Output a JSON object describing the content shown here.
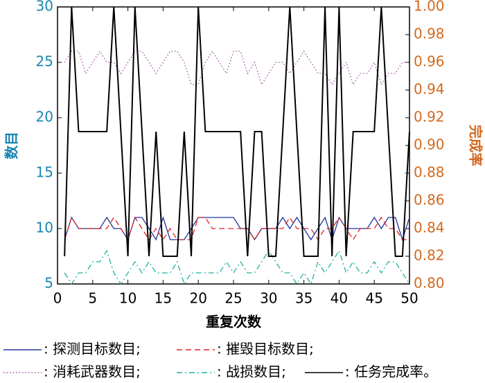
{
  "chart_data": {
    "type": "line",
    "xlabel": "重复次数",
    "ylabel": "数目",
    "y2label": "完成率",
    "x": [
      1,
      2,
      3,
      4,
      5,
      6,
      7,
      8,
      9,
      10,
      11,
      12,
      13,
      14,
      15,
      16,
      17,
      18,
      19,
      20,
      21,
      22,
      23,
      24,
      25,
      26,
      27,
      28,
      29,
      30,
      31,
      32,
      33,
      34,
      35,
      36,
      37,
      38,
      39,
      40,
      41,
      42,
      43,
      44,
      45,
      46,
      47,
      48,
      49,
      50
    ],
    "xlim": [
      0,
      50
    ],
    "xticks": [
      0,
      5,
      10,
      15,
      20,
      25,
      30,
      35,
      40,
      45,
      50
    ],
    "ylim": [
      5,
      30
    ],
    "yticks": [
      5,
      10,
      15,
      20,
      25,
      30
    ],
    "y2lim": [
      0.8,
      1.0
    ],
    "y2ticks": [
      {
        "value": 0.8,
        "label": "0.80"
      },
      {
        "value": 0.82,
        "label": "0.82"
      },
      {
        "value": 0.84,
        "label": "0.84"
      },
      {
        "value": 0.86,
        "label": "0.86"
      },
      {
        "value": 0.88,
        "label": "0.88"
      },
      {
        "value": 0.9,
        "label": "0.90"
      },
      {
        "value": 0.92,
        "label": "0.92"
      },
      {
        "value": 0.94,
        "label": "0.94"
      },
      {
        "value": 0.96,
        "label": "0.96"
      },
      {
        "value": 0.98,
        "label": "0.98"
      },
      {
        "value": 1.0,
        "label": "1.00"
      }
    ],
    "ycolor": "#1a86b0",
    "y2color": "#d2691e",
    "series": [
      {
        "name": ": 探测目标数目;",
        "color": "#22339a",
        "linestyle": "solid",
        "values": [
          9,
          11,
          10,
          10,
          10,
          10,
          11,
          10,
          10,
          9,
          11,
          11,
          10,
          9,
          11,
          9,
          9,
          9,
          10,
          11,
          11,
          11,
          11,
          11,
          11,
          10,
          10,
          9,
          10,
          10,
          10,
          11,
          10,
          11,
          10,
          9,
          10,
          11,
          9,
          11,
          10,
          10,
          10,
          10,
          11,
          10,
          11,
          11,
          9,
          11
        ]
      },
      {
        "name": ": 摧毁目标数目;",
        "color": "#e02020",
        "linestyle": "dashed",
        "values": [
          9,
          11,
          10,
          10,
          10,
          10,
          10,
          11,
          10,
          9,
          11,
          10,
          9,
          10,
          9,
          10,
          9,
          9,
          9,
          11,
          11,
          10,
          10,
          10,
          10,
          10,
          10,
          9,
          10,
          10,
          10,
          10,
          11,
          10,
          10,
          10,
          9,
          10,
          10,
          11,
          10,
          9,
          10,
          10,
          10,
          11,
          10,
          10,
          9,
          9
        ]
      },
      {
        "name": ": 消耗武器数目;",
        "color": "#9a4a9a",
        "linestyle": "dotted",
        "values": [
          25,
          26,
          26,
          24,
          25,
          26,
          25,
          25,
          24,
          25,
          26,
          26,
          25,
          24,
          25,
          26,
          26,
          25,
          23,
          23,
          25,
          26,
          25,
          24,
          26,
          26,
          24,
          25,
          23,
          24,
          25,
          25,
          24,
          25,
          26,
          25,
          24,
          24,
          23,
          24,
          25,
          23,
          24,
          24,
          25,
          23,
          24,
          24,
          25,
          25
        ]
      },
      {
        "name": ": 战损数目;",
        "color": "#20b0a0",
        "linestyle": "dashdot",
        "values": [
          6,
          5,
          6,
          6,
          7,
          7,
          8,
          6,
          5,
          6,
          7,
          6,
          7,
          6,
          6,
          6,
          7,
          5,
          6,
          6,
          6,
          6,
          6,
          7,
          6,
          7,
          6,
          6,
          7,
          8,
          7,
          6,
          6,
          5,
          6,
          5,
          7,
          6,
          7,
          8,
          6,
          7,
          6,
          6,
          7,
          6,
          7,
          7,
          6,
          5
        ]
      },
      {
        "name": ": 任务完成率。",
        "color": "#000000",
        "linestyle": "solid",
        "axis": "y2",
        "values": [
          0.82,
          1.0,
          0.91,
          0.91,
          0.91,
          0.91,
          0.91,
          1.0,
          0.91,
          0.82,
          1.0,
          0.91,
          0.82,
          0.91,
          0.82,
          0.82,
          0.82,
          0.91,
          0.82,
          1.0,
          0.91,
          0.91,
          0.91,
          0.91,
          0.91,
          0.91,
          0.82,
          0.91,
          0.91,
          0.82,
          0.82,
          0.91,
          1.0,
          0.91,
          0.82,
          0.82,
          0.82,
          1.0,
          0.82,
          1.0,
          0.82,
          0.91,
          0.91,
          0.91,
          0.91,
          1.0,
          0.91,
          0.82,
          0.82,
          0.91
        ]
      }
    ]
  }
}
